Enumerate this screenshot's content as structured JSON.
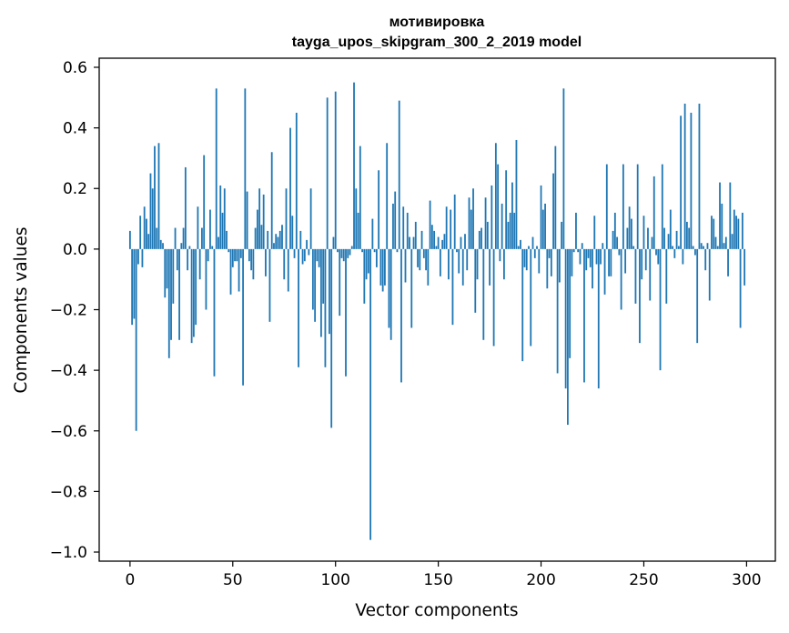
{
  "chart_data": {
    "type": "bar",
    "title": "мотивировка",
    "subtitle": "tayga_upos_skipgram_300_2_2019 model",
    "xlabel": "Vector components",
    "ylabel": "Components values",
    "xlim": [
      -15,
      314
    ],
    "ylim": [
      -1.03,
      0.63
    ],
    "xticks": [
      0,
      50,
      100,
      150,
      200,
      250,
      300
    ],
    "yticks": [
      -1.0,
      -0.8,
      -0.6,
      -0.4,
      -0.2,
      0.0,
      0.2,
      0.4,
      0.6
    ],
    "xtick_labels": [
      "0",
      "50",
      "100",
      "150",
      "200",
      "250",
      "300"
    ],
    "ytick_labels": [
      "−1.0",
      "−0.8",
      "−0.6",
      "−0.4",
      "−0.2",
      "0.0",
      "0.2",
      "0.4",
      "0.6"
    ],
    "grid": false,
    "color": "#1f77b4",
    "values": [
      0.06,
      -0.25,
      -0.23,
      -0.6,
      -0.05,
      0.11,
      -0.06,
      0.14,
      0.1,
      0.05,
      0.25,
      0.2,
      0.34,
      0.07,
      0.35,
      0.03,
      0.02,
      -0.16,
      -0.13,
      -0.36,
      -0.3,
      -0.18,
      0.07,
      -0.07,
      -0.3,
      0.02,
      0.07,
      0.27,
      -0.07,
      0.01,
      -0.31,
      -0.29,
      -0.25,
      0.14,
      -0.1,
      0.07,
      0.31,
      -0.2,
      -0.04,
      0.13,
      0.01,
      -0.42,
      0.53,
      0.04,
      0.21,
      0.12,
      0.2,
      0.06,
      -0.01,
      -0.15,
      -0.06,
      -0.04,
      -0.04,
      -0.14,
      -0.03,
      -0.45,
      0.53,
      0.19,
      -0.04,
      -0.07,
      -0.1,
      0.07,
      0.13,
      0.2,
      0.08,
      0.18,
      -0.09,
      0.06,
      -0.24,
      0.32,
      0.02,
      0.05,
      0.04,
      0.06,
      0.08,
      -0.1,
      0.2,
      -0.14,
      0.4,
      0.11,
      -0.03,
      0.45,
      -0.39,
      0.06,
      -0.05,
      -0.04,
      0.03,
      -0.02,
      0.2,
      -0.2,
      -0.24,
      -0.04,
      -0.06,
      -0.29,
      -0.18,
      -0.39,
      0.5,
      -0.28,
      -0.59,
      0.04,
      0.52,
      -0.01,
      -0.22,
      -0.03,
      -0.04,
      -0.42,
      -0.03,
      -0.02,
      0.01,
      0.55,
      0.2,
      0.12,
      0.34,
      -0.01,
      -0.18,
      -0.1,
      -0.08,
      -0.96,
      0.1,
      -0.01,
      -0.06,
      0.26,
      -0.12,
      -0.14,
      -0.12,
      0.35,
      -0.26,
      -0.3,
      0.15,
      0.19,
      -0.01,
      0.49,
      -0.44,
      0.14,
      -0.11,
      0.12,
      0.04,
      -0.26,
      0.04,
      0.09,
      -0.06,
      -0.07,
      0.06,
      -0.03,
      -0.07,
      -0.12,
      0.16,
      0.08,
      0.06,
      0.01,
      0.04,
      -0.09,
      0.03,
      0.05,
      0.14,
      -0.1,
      0.13,
      -0.25,
      0.18,
      -0.01,
      -0.08,
      0.04,
      -0.12,
      0.05,
      -0.07,
      0.17,
      0.13,
      0.2,
      -0.21,
      -0.1,
      0.06,
      0.07,
      -0.3,
      0.17,
      0.09,
      -0.12,
      0.21,
      -0.32,
      0.35,
      0.28,
      -0.04,
      0.15,
      -0.1,
      0.26,
      0.09,
      0.12,
      0.22,
      0.12,
      0.36,
      0.01,
      0.03,
      -0.37,
      -0.06,
      -0.07,
      0.01,
      -0.32,
      0.04,
      -0.03,
      0.01,
      -0.08,
      0.21,
      0.13,
      0.15,
      -0.13,
      -0.03,
      -0.09,
      0.25,
      0.34,
      -0.41,
      -0.11,
      0.09,
      0.53,
      -0.46,
      -0.58,
      -0.36,
      -0.09,
      -0.01,
      0.12,
      -0.01,
      -0.05,
      0.02,
      -0.44,
      -0.07,
      -0.03,
      -0.06,
      -0.13,
      0.11,
      -0.05,
      -0.46,
      -0.05,
      0.02,
      -0.15,
      0.28,
      -0.09,
      -0.09,
      0.06,
      0.12,
      0.04,
      -0.02,
      -0.2,
      0.28,
      -0.08,
      0.07,
      0.14,
      0.1,
      0.01,
      -0.18,
      0.28,
      -0.31,
      -0.1,
      0.11,
      -0.07,
      0.07,
      -0.17,
      0.04,
      0.24,
      -0.02,
      -0.05,
      -0.4,
      0.28,
      0.07,
      -0.18,
      0.05,
      0.13,
      0.01,
      -0.03,
      0.06,
      0.01,
      0.44,
      -0.05,
      0.48,
      0.09,
      0.07,
      0.45,
      0.01,
      -0.02,
      -0.31,
      0.48,
      0.02,
      0.01,
      -0.07,
      0.02,
      -0.17,
      0.11,
      0.1,
      0.04,
      0.01,
      0.22,
      0.15,
      0.02,
      0.04,
      -0.09,
      0.22,
      0.05,
      0.13,
      0.11,
      0.1,
      -0.26,
      0.12,
      -0.12
    ]
  }
}
